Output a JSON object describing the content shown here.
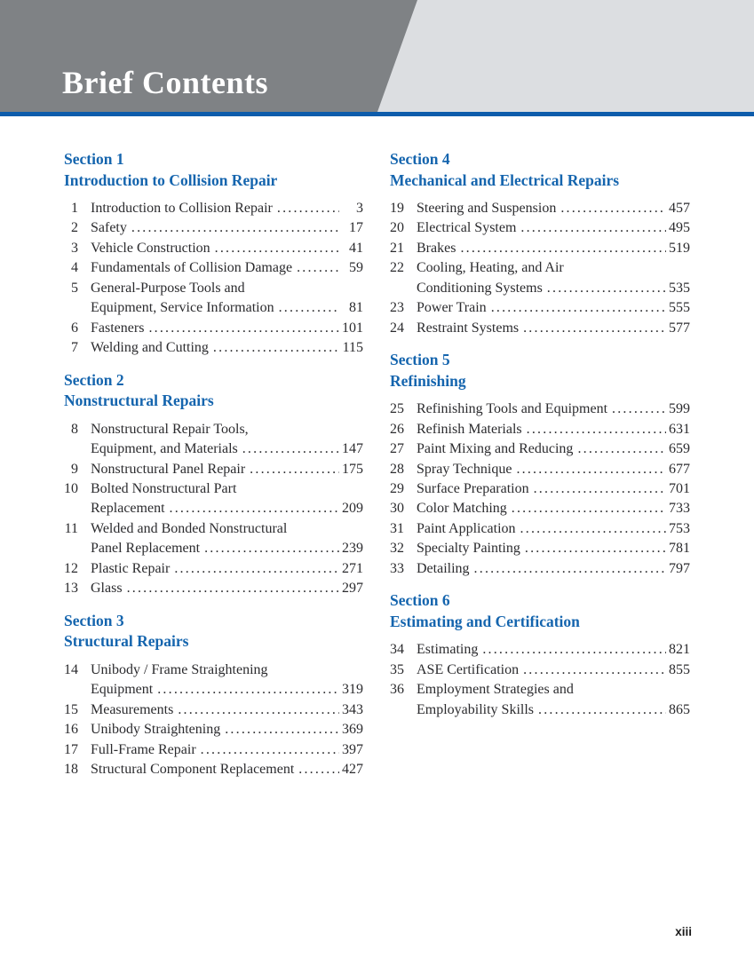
{
  "header": {
    "title": "Brief Contents"
  },
  "footer": {
    "page_label": "xiii"
  },
  "colors": {
    "band_dark": "#7f8285",
    "band_light": "#dcdee1",
    "rule_blue": "#0d5cab",
    "heading_blue": "#1565ae",
    "text": "#2b2b2e"
  },
  "sections": [
    {
      "column": "left",
      "label": "Section 1",
      "title": "Introduction to Collision Repair",
      "entries": [
        {
          "num": "1",
          "lines": [
            "Introduction to Collision Repair"
          ],
          "page": "3"
        },
        {
          "num": "2",
          "lines": [
            "Safety"
          ],
          "page": "17"
        },
        {
          "num": "3",
          "lines": [
            "Vehicle Construction"
          ],
          "page": "41"
        },
        {
          "num": "4",
          "lines": [
            "Fundamentals of Collision Damage"
          ],
          "page": "59"
        },
        {
          "num": "5",
          "lines": [
            "General-Purpose Tools and",
            "Equipment, Service Information"
          ],
          "page": "81"
        },
        {
          "num": "6",
          "lines": [
            "Fasteners"
          ],
          "page": "101"
        },
        {
          "num": "7",
          "lines": [
            "Welding and Cutting"
          ],
          "page": "115"
        }
      ]
    },
    {
      "column": "left",
      "label": "Section 2",
      "title": "Nonstructural Repairs",
      "entries": [
        {
          "num": "8",
          "lines": [
            "Nonstructural Repair Tools,",
            "Equipment, and Materials"
          ],
          "page": "147"
        },
        {
          "num": "9",
          "lines": [
            "Nonstructural Panel Repair"
          ],
          "page": "175"
        },
        {
          "num": "10",
          "lines": [
            "Bolted Nonstructural Part",
            "Replacement"
          ],
          "page": "209"
        },
        {
          "num": "11",
          "lines": [
            "Welded and Bonded Nonstructural",
            "Panel Replacement"
          ],
          "page": "239"
        },
        {
          "num": "12",
          "lines": [
            "Plastic Repair"
          ],
          "page": "271"
        },
        {
          "num": "13",
          "lines": [
            "Glass"
          ],
          "page": "297"
        }
      ]
    },
    {
      "column": "left",
      "label": "Section 3",
      "title": "Structural Repairs",
      "entries": [
        {
          "num": "14",
          "lines": [
            "Unibody / Frame Straightening",
            "Equipment"
          ],
          "page": "319"
        },
        {
          "num": "15",
          "lines": [
            "Measurements"
          ],
          "page": "343"
        },
        {
          "num": "16",
          "lines": [
            "Unibody Straightening"
          ],
          "page": "369"
        },
        {
          "num": "17",
          "lines": [
            "Full-Frame Repair"
          ],
          "page": "397"
        },
        {
          "num": "18",
          "lines": [
            "Structural Component Replacement"
          ],
          "page": "427"
        }
      ]
    },
    {
      "column": "right",
      "label": "Section 4",
      "title": "Mechanical and Electrical Repairs",
      "entries": [
        {
          "num": "19",
          "lines": [
            "Steering and Suspension"
          ],
          "page": "457"
        },
        {
          "num": "20",
          "lines": [
            "Electrical System"
          ],
          "page": "495"
        },
        {
          "num": "21",
          "lines": [
            "Brakes"
          ],
          "page": "519"
        },
        {
          "num": "22",
          "lines": [
            "Cooling, Heating, and Air",
            "Conditioning Systems"
          ],
          "page": "535"
        },
        {
          "num": "23",
          "lines": [
            "Power Train"
          ],
          "page": "555"
        },
        {
          "num": "24",
          "lines": [
            "Restraint Systems"
          ],
          "page": "577"
        }
      ]
    },
    {
      "column": "right",
      "label": "Section 5",
      "title": "Refinishing",
      "entries": [
        {
          "num": "25",
          "lines": [
            "Refinishing Tools and Equipment"
          ],
          "page": "599"
        },
        {
          "num": "26",
          "lines": [
            "Refinish Materials"
          ],
          "page": "631"
        },
        {
          "num": "27",
          "lines": [
            "Paint Mixing and Reducing"
          ],
          "page": "659"
        },
        {
          "num": "28",
          "lines": [
            "Spray Technique"
          ],
          "page": "677"
        },
        {
          "num": "29",
          "lines": [
            "Surface Preparation"
          ],
          "page": "701"
        },
        {
          "num": "30",
          "lines": [
            "Color Matching"
          ],
          "page": "733"
        },
        {
          "num": "31",
          "lines": [
            "Paint Application"
          ],
          "page": "753"
        },
        {
          "num": "32",
          "lines": [
            "Specialty Painting"
          ],
          "page": "781"
        },
        {
          "num": "33",
          "lines": [
            "Detailing"
          ],
          "page": "797"
        }
      ]
    },
    {
      "column": "right",
      "label": "Section 6",
      "title": "Estimating and Certification",
      "entries": [
        {
          "num": "34",
          "lines": [
            "Estimating"
          ],
          "page": "821"
        },
        {
          "num": "35",
          "lines": [
            "ASE Certification"
          ],
          "page": "855"
        },
        {
          "num": "36",
          "lines": [
            "Employment Strategies and",
            "Employability Skills"
          ],
          "page": "865"
        }
      ]
    }
  ]
}
